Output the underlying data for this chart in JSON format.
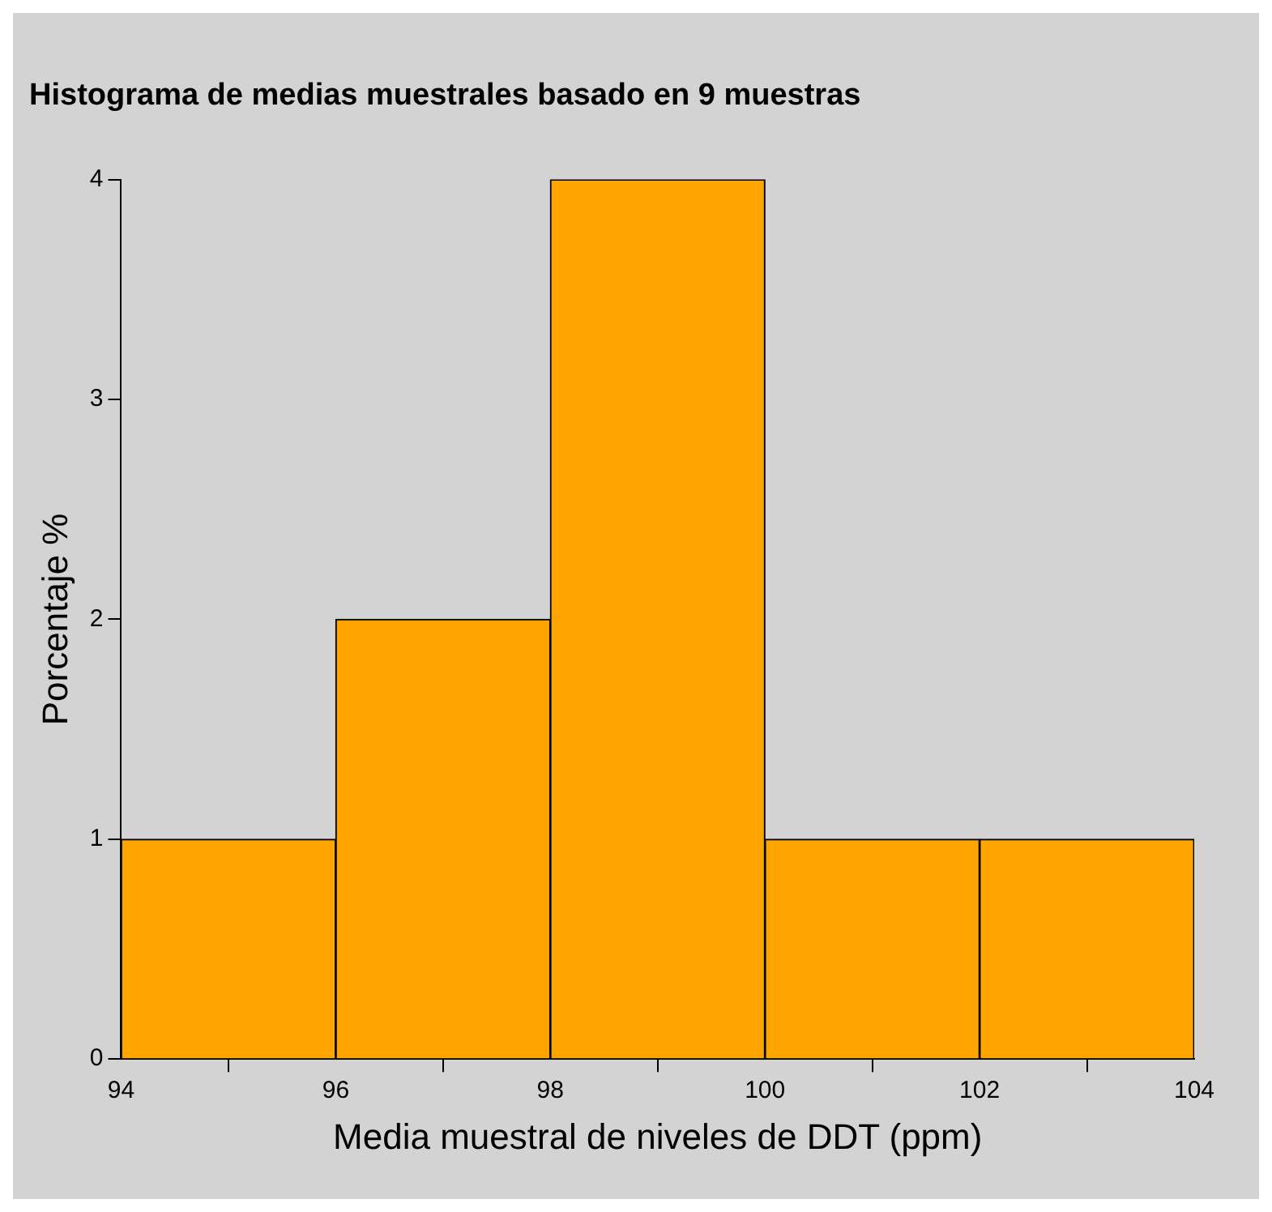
{
  "chart_data": {
    "type": "histogram",
    "title": "Histograma de medias muestrales basado en 9 muestras",
    "xlabel": "Media muestral de niveles de DDT (ppm)",
    "ylabel": "Porcentaje %",
    "bins": [
      94,
      96,
      98,
      100,
      102,
      104
    ],
    "values": [
      1,
      2,
      4,
      1,
      1
    ],
    "color": "#ffa500",
    "xlim": [
      94,
      104
    ],
    "xticks": [
      94,
      96,
      98,
      100,
      102,
      104
    ],
    "ylim": [
      0,
      4
    ],
    "yticks": [
      0,
      1,
      2,
      3,
      4
    ],
    "grid": false,
    "legend": false
  }
}
